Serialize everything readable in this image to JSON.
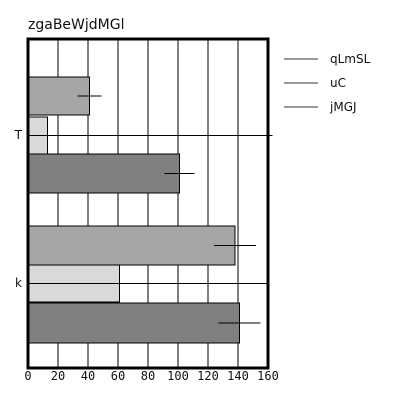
{
  "chart_data": {
    "type": "bar",
    "orientation": "horizontal",
    "title": "zgaBeWjdMGl",
    "xlabel": "",
    "ylabel": "",
    "xlim": [
      0,
      160
    ],
    "xticks": [
      0,
      20,
      40,
      60,
      80,
      100,
      120,
      140,
      160
    ],
    "categories": [
      "T",
      "k"
    ],
    "series": [
      {
        "name": "qLmSL",
        "color": "#a6a6a6",
        "values": [
          41,
          138
        ],
        "error": [
          8,
          14
        ]
      },
      {
        "name": "uC",
        "color": "#d9d9d9",
        "values": [
          13,
          61
        ],
        "error": [
          150,
          100
        ]
      },
      {
        "name": "jMGJ",
        "color": "#808080",
        "values": [
          101,
          141
        ],
        "error": [
          10,
          14
        ]
      }
    ],
    "grid": {
      "x": true,
      "y": false
    },
    "legend": {
      "position": "right",
      "style": "line"
    }
  }
}
